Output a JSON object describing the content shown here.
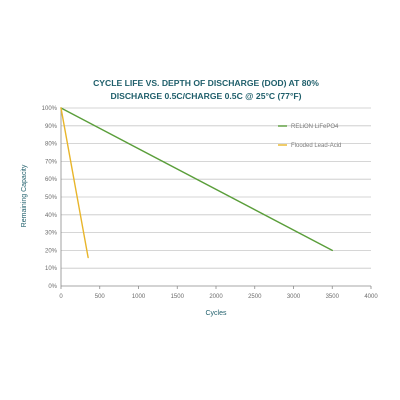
{
  "chart_data": {
    "type": "line",
    "title_lines": [
      "CYCLE LIFE VS. DEPTH OF DISCHARGE (DOD) AT 80%",
      "DISCHARGE 0.5C/CHARGE 0.5C @ 25°C (77°F)"
    ],
    "xlabel": "Cycles",
    "ylabel": "Remaining Capacity",
    "xlim": [
      0,
      4000
    ],
    "ylim": [
      0,
      100
    ],
    "x_ticks": [
      0,
      500,
      1000,
      1500,
      2000,
      2500,
      3000,
      3500,
      4000
    ],
    "y_ticks": [
      0,
      10,
      20,
      30,
      40,
      50,
      60,
      70,
      80,
      90,
      100
    ],
    "y_tick_labels": [
      "0%",
      "10%",
      "20%",
      "30%",
      "40%",
      "50%",
      "60%",
      "70%",
      "80%",
      "90%",
      "100%"
    ],
    "grid": "horizontal",
    "legend_position": "top-right",
    "series": [
      {
        "name": "RELiON LiFePO4",
        "color": "#5a9e3a",
        "x": [
          0,
          3500
        ],
        "y": [
          100,
          20
        ]
      },
      {
        "name": "Flooded Lead-Acid",
        "color": "#e8b52a",
        "x": [
          0,
          350
        ],
        "y": [
          100,
          16
        ]
      }
    ]
  }
}
